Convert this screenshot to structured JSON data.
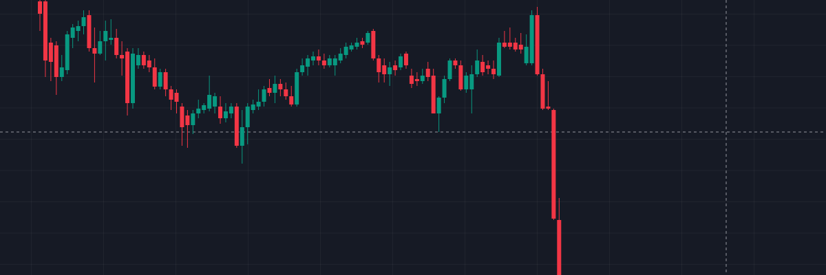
{
  "chart_data": {
    "type": "candlestick",
    "up_color": "#089981",
    "down_color": "#f23645",
    "background": "#161a25",
    "ylim": [
      0,
      400
    ],
    "open": [
      398,
      398,
      338,
      334,
      288,
      298,
      345,
      355,
      362,
      378,
      330,
      322,
      340,
      342,
      345,
      320,
      325,
      250,
      305,
      320,
      312,
      302,
      274,
      295,
      270,
      265,
      245,
      232,
      218,
      235,
      240,
      242,
      245,
      245,
      228,
      235,
      245,
      188,
      215,
      240,
      245,
      252,
      272,
      265,
      278,
      270,
      260,
      248,
      295,
      303,
      312,
      318,
      312,
      305,
      305,
      312,
      320,
      328,
      332,
      340,
      338,
      355,
      315,
      305,
      292,
      305,
      302,
      322,
      290,
      285,
      282,
      300,
      290,
      235,
      258,
      285,
      312,
      305,
      270,
      270,
      292,
      310,
      305,
      300,
      290,
      338,
      338,
      338,
      335,
      308,
      308,
      378,
      292,
      245,
      240,
      80
    ],
    "high": [
      400,
      400,
      345,
      340,
      320,
      355,
      365,
      370,
      385,
      385,
      360,
      355,
      370,
      372,
      358,
      340,
      330,
      330,
      330,
      325,
      320,
      315,
      300,
      300,
      275,
      270,
      250,
      240,
      240,
      255,
      250,
      290,
      265,
      260,
      250,
      250,
      250,
      240,
      250,
      255,
      270,
      275,
      285,
      290,
      285,
      280,
      275,
      300,
      315,
      320,
      325,
      328,
      322,
      320,
      320,
      330,
      338,
      338,
      345,
      345,
      355,
      358,
      320,
      315,
      310,
      312,
      322,
      325,
      300,
      295,
      300,
      310,
      300,
      260,
      290,
      315,
      315,
      312,
      295,
      305,
      328,
      320,
      312,
      312,
      345,
      355,
      360,
      345,
      352,
      350,
      385,
      390,
      300,
      282,
      242,
      112
    ],
    "low": [
      355,
      288,
      282,
      262,
      282,
      292,
      330,
      340,
      350,
      325,
      280,
      320,
      312,
      335,
      315,
      290,
      232,
      242,
      300,
      300,
      295,
      270,
      270,
      260,
      240,
      235,
      188,
      185,
      205,
      228,
      235,
      238,
      235,
      220,
      222,
      228,
      185,
      162,
      190,
      235,
      240,
      245,
      260,
      250,
      260,
      255,
      245,
      245,
      290,
      290,
      305,
      305,
      300,
      302,
      290,
      308,
      315,
      325,
      328,
      330,
      335,
      312,
      280,
      280,
      275,
      290,
      298,
      300,
      272,
      275,
      278,
      282,
      235,
      208,
      250,
      282,
      300,
      268,
      265,
      235,
      288,
      290,
      292,
      285,
      288,
      330,
      328,
      325,
      322,
      305,
      305,
      290,
      240,
      240,
      80,
      0
    ],
    "close": [
      380,
      312,
      310,
      288,
      302,
      350,
      360,
      362,
      375,
      330,
      322,
      340,
      355,
      345,
      320,
      315,
      250,
      322,
      320,
      305,
      302,
      274,
      295,
      270,
      255,
      252,
      215,
      218,
      235,
      242,
      247,
      262,
      260,
      228,
      238,
      245,
      188,
      215,
      245,
      248,
      252,
      270,
      265,
      278,
      270,
      260,
      248,
      295,
      305,
      315,
      318,
      312,
      305,
      315,
      315,
      322,
      332,
      334,
      338,
      335,
      352,
      315,
      295,
      292,
      302,
      298,
      318,
      305,
      278,
      282,
      290,
      288,
      235,
      258,
      285,
      312,
      305,
      270,
      290,
      292,
      312,
      295,
      300,
      292,
      338,
      332,
      332,
      328,
      328,
      332,
      378,
      292,
      242,
      242,
      82,
      0
    ]
  }
}
